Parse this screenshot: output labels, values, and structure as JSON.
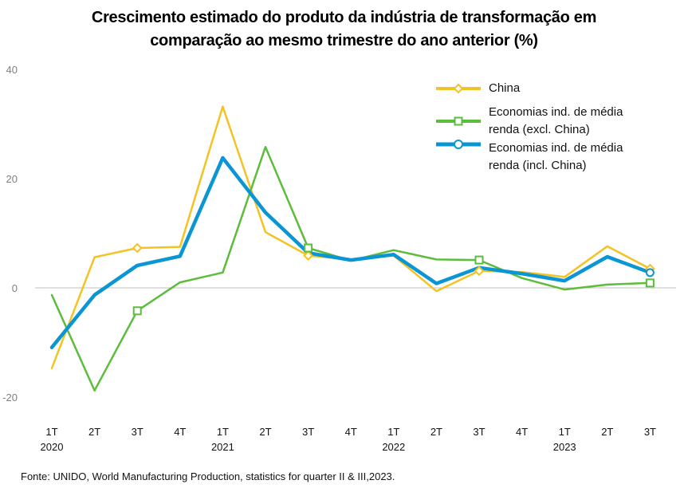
{
  "title_line1": "Crescimento estimado do produto da indústria de transformação em",
  "title_line2": "comparação ao mesmo trimestre do ano anterior (%)",
  "source": "Fonte: UNIDO, World Manufacturing Production, statistics for quarter II & III,2023.",
  "colors": {
    "china": "#f5c223",
    "excl": "#5bbd3b",
    "incl": "#0a95d4",
    "axis": "#bfbfbf",
    "grid": "#e6e6e6",
    "tick": "#808080"
  },
  "chart_data": {
    "type": "line",
    "title": "Crescimento estimado do produto da indústria de transformação em comparação ao mesmo trimestre do ano anterior (%)",
    "categories": [
      "1T 2020",
      "2T",
      "3T",
      "4T",
      "1T 2021",
      "2T",
      "3T",
      "4T",
      "1T 2022",
      "2T",
      "3T",
      "4T",
      "1T 2023",
      "2T",
      "3T"
    ],
    "x_tick_labels": [
      "1T",
      "2T",
      "3T",
      "4T",
      "1T",
      "2T",
      "3T",
      "4T",
      "1T",
      "2T",
      "3T",
      "4T",
      "1T",
      "2T",
      "3T"
    ],
    "x_year_labels": [
      "2020",
      "",
      "",
      "",
      "2021",
      "",
      "",
      "",
      "2022",
      "",
      "",
      "",
      "2023",
      "",
      ""
    ],
    "ylim": [
      -20,
      40
    ],
    "y_ticks": [
      -20,
      0,
      20,
      40
    ],
    "grid": false,
    "legend_position": "top-right",
    "series": [
      {
        "name": "China",
        "color": "#f5c223",
        "marker": "diamond",
        "marker_indices": [
          2,
          6,
          10,
          14
        ],
        "values": [
          -14.7,
          5.6,
          7.3,
          7.5,
          33.2,
          10.2,
          5.9,
          5.2,
          5.9,
          -0.6,
          3.1,
          2.9,
          2.0,
          7.6,
          3.5
        ]
      },
      {
        "name": "Economias ind. de média renda (excl. China)",
        "color": "#5bbd3b",
        "marker": "square",
        "marker_indices": [
          2,
          6,
          10,
          14
        ],
        "values": [
          -1.3,
          -18.8,
          -4.2,
          1.0,
          2.8,
          25.8,
          7.3,
          5.0,
          6.9,
          5.2,
          5.1,
          1.8,
          -0.3,
          0.6,
          0.9
        ]
      },
      {
        "name": "Economias ind. de média renda (incl. China)",
        "color": "#0a95d4",
        "marker": "circle",
        "marker_indices": [
          14
        ],
        "values": [
          -10.9,
          -1.3,
          4.1,
          5.8,
          23.8,
          13.8,
          6.4,
          5.1,
          6.1,
          0.8,
          3.7,
          2.6,
          1.3,
          5.7,
          2.8
        ]
      }
    ]
  }
}
